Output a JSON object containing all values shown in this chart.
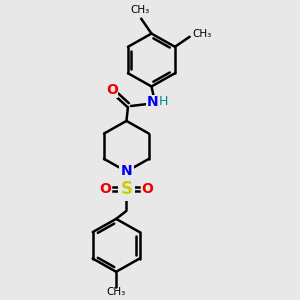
{
  "bg_color": "#e8e8e8",
  "bond_color": "#000000",
  "bond_width": 1.8,
  "N_color": "#0000ee",
  "O_color": "#ee0000",
  "S_color": "#cccc00",
  "H_color": "#008888",
  "font_size": 10,
  "figsize": [
    3.0,
    3.0
  ],
  "dpi": 100,
  "xlim": [
    0,
    10
  ],
  "ylim": [
    0,
    10
  ]
}
